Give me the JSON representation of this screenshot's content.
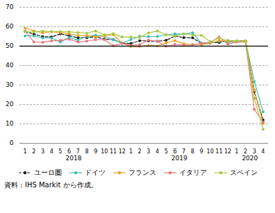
{
  "chart_data": {
    "type": "line",
    "categories": [
      "1",
      "2",
      "3",
      "4",
      "5",
      "6",
      "7",
      "8",
      "9",
      "10",
      "11",
      "12",
      "1",
      "2",
      "3",
      "4",
      "5",
      "6",
      "7",
      "8",
      "9",
      "10",
      "11",
      "12",
      "1",
      "2",
      "3",
      "4"
    ],
    "annotations": [
      "2018",
      "2019",
      "2020"
    ],
    "series": [
      {
        "name": "ユーロ圏",
        "color": "#1a1a1a",
        "marker": "circle",
        "line_style": "dashed",
        "values": [
          57.6,
          56.2,
          54.9,
          54.7,
          56.3,
          55.4,
          54.3,
          54.4,
          54.7,
          53.7,
          53.4,
          51.6,
          51.3,
          52.8,
          52.7,
          52.5,
          53.0,
          55.2,
          54.4,
          54.3,
          51.4,
          51.8,
          51.9,
          52.8,
          52.6,
          52.6,
          26.4,
          12.0
        ]
      },
      {
        "name": "ドイツ",
        "color": "#3cbcb4",
        "marker": "circle",
        "line_style": "solid",
        "values": [
          55.3,
          55.3,
          54.2,
          54.2,
          52.1,
          54.5,
          53.1,
          55.0,
          55.6,
          55.2,
          53.3,
          51.5,
          53.4,
          55.1,
          54.9,
          55.0,
          55.8,
          56.3,
          56.2,
          56.9,
          51.5,
          51.6,
          52.5,
          52.0,
          52.5,
          52.7,
          31.7,
          16.2
        ]
      },
      {
        "name": "フランス",
        "color": "#e8a020",
        "marker": "circle",
        "line_style": "solid",
        "values": [
          59.3,
          57.9,
          56.8,
          57.4,
          57.0,
          56.4,
          55.5,
          55.4,
          54.8,
          55.3,
          55.9,
          51.5,
          49.8,
          49.8,
          50.4,
          50.1,
          51.7,
          52.9,
          51.2,
          50.9,
          50.8,
          51.5,
          52.9,
          52.4,
          52.5,
          52.7,
          27.4,
          10.2
        ]
      },
      {
        "name": "イタリア",
        "color": "#e87878",
        "marker": "circle",
        "line_style": "solid",
        "values": [
          57.7,
          52.1,
          52.0,
          52.7,
          53.0,
          53.6,
          52.1,
          52.6,
          53.3,
          53.3,
          50.2,
          51.4,
          50.4,
          50.8,
          53.1,
          52.5,
          50.0,
          50.9,
          50.5,
          50.6,
          51.4,
          52.0,
          54.7,
          51.1,
          52.1,
          52.1,
          17.4,
          10.8
        ]
      },
      {
        "name": "スペイン",
        "color": "#a8c840",
        "marker": "circle",
        "line_style": "solid",
        "values": [
          57.5,
          57.3,
          57.7,
          57.5,
          57.5,
          57.4,
          57.0,
          56.7,
          57.8,
          55.9,
          56.4,
          54.7,
          54.7,
          54.5,
          56.8,
          57.8,
          55.8,
          55.2,
          56.3,
          55.8,
          55.5,
          52.3,
          54.1,
          52.7,
          52.7,
          52.1,
          23.0,
          7.1
        ]
      }
    ],
    "ylim": [
      0,
      70
    ],
    "yticks": [
      0,
      10,
      20,
      30,
      40,
      50,
      60,
      70
    ],
    "grid": true,
    "legend": "bottom",
    "reference_line": {
      "value": 50,
      "color": "#1a1a1a"
    },
    "caption": "資料：IHS Markit から作成。"
  }
}
